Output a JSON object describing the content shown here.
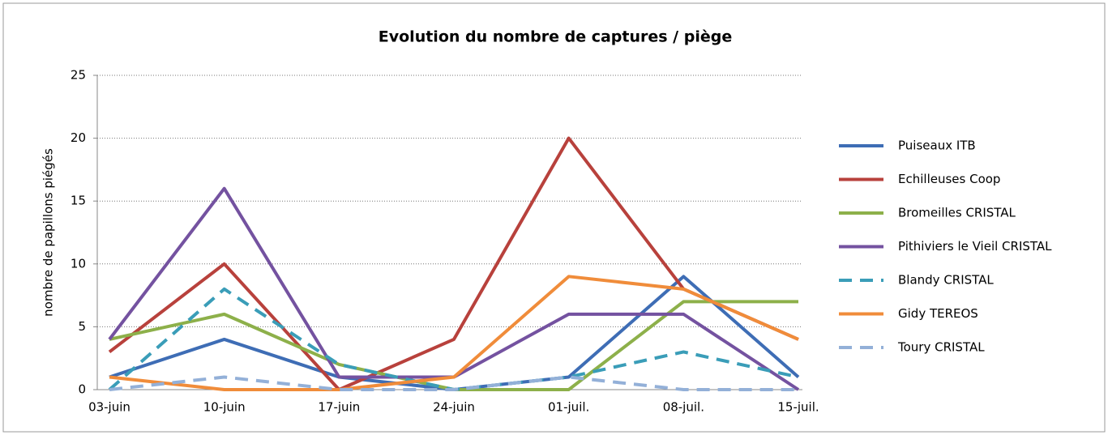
{
  "chart_data": {
    "type": "line",
    "title": "Evolution du nombre de captures / piège",
    "y_label": "nombre de papillons  piégés",
    "categories": [
      "03-juin",
      "10-juin",
      "17-juin",
      "24-juin",
      "01-juil.",
      "08-juil.",
      "15-juil."
    ],
    "ylim": [
      0,
      25
    ],
    "yticks": [
      0,
      5,
      10,
      15,
      20,
      25
    ],
    "grid": true,
    "legend": "right",
    "series": [
      {
        "name": "Puiseaux ITB",
        "color": "#3e6db5",
        "dashed": false,
        "values": [
          1,
          4,
          1,
          0,
          1,
          9,
          1
        ]
      },
      {
        "name": "Echilleuses Coop",
        "color": "#b8413c",
        "dashed": false,
        "values": [
          3,
          10,
          0,
          4,
          20,
          8,
          4
        ]
      },
      {
        "name": "Bromeilles CRISTAL",
        "color": "#8db04a",
        "dashed": false,
        "values": [
          4,
          6,
          2,
          0,
          0,
          7,
          7
        ]
      },
      {
        "name": "Pithiviers le Vieil  CRISTAL",
        "color": "#7452a0",
        "dashed": false,
        "values": [
          4,
          16,
          1,
          1,
          6,
          6,
          0
        ]
      },
      {
        "name": "Blandy CRISTAL",
        "color": "#3a9db8",
        "dashed": true,
        "values": [
          0,
          8,
          2,
          0,
          1,
          3,
          1
        ]
      },
      {
        "name": "Gidy  TEREOS",
        "color": "#f08c3a",
        "dashed": false,
        "values": [
          1,
          0,
          0,
          1,
          9,
          8,
          4
        ]
      },
      {
        "name": "Toury  CRISTAL",
        "color": "#93b0d8",
        "dashed": true,
        "values": [
          0,
          1,
          0,
          0,
          1,
          0,
          0
        ]
      }
    ]
  }
}
